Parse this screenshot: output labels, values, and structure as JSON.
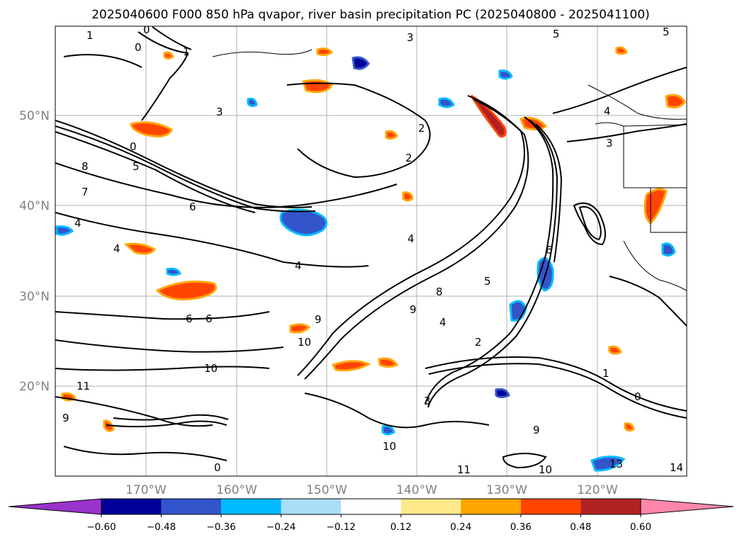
{
  "title": "2025040600 F000 850 hPa qvapor, river basin precipitation PC (2025040800 - 2025041100)",
  "lat_labels": [
    "50°N",
    "40°N",
    "30°N",
    "20°N"
  ],
  "lon_labels": [
    "170°W",
    "160°W",
    "150°W",
    "140°W",
    "130°W",
    "120°W"
  ],
  "colorbar": {
    "ticks": [
      "−0.60",
      "−0.48",
      "−0.36",
      "−0.24",
      "−0.12",
      "0.12",
      "0.24",
      "0.36",
      "0.48",
      "0.60"
    ],
    "colors": [
      "#9933cc",
      "#000099",
      "#3355cc",
      "#00bbff",
      "#aaddf7",
      "#ffffff",
      "#ffe98a",
      "#ffa500",
      "#ff4500",
      "#b22222",
      "#ff88aa"
    ],
    "extend": "both"
  },
  "contour_labels": [
    "1",
    "0",
    "0",
    "1",
    "3",
    "5",
    "5",
    "3",
    "4",
    "3",
    "2",
    "2",
    "0",
    "8",
    "7",
    "6",
    "5",
    "4",
    "4",
    "4",
    "4",
    "6",
    "6",
    "10",
    "10",
    "11",
    "9",
    "8",
    "9",
    "4",
    "2",
    "3",
    "5",
    "6",
    "1",
    "0",
    "9",
    "10",
    "10",
    "11",
    "13",
    "14",
    "9",
    "0"
  ]
}
